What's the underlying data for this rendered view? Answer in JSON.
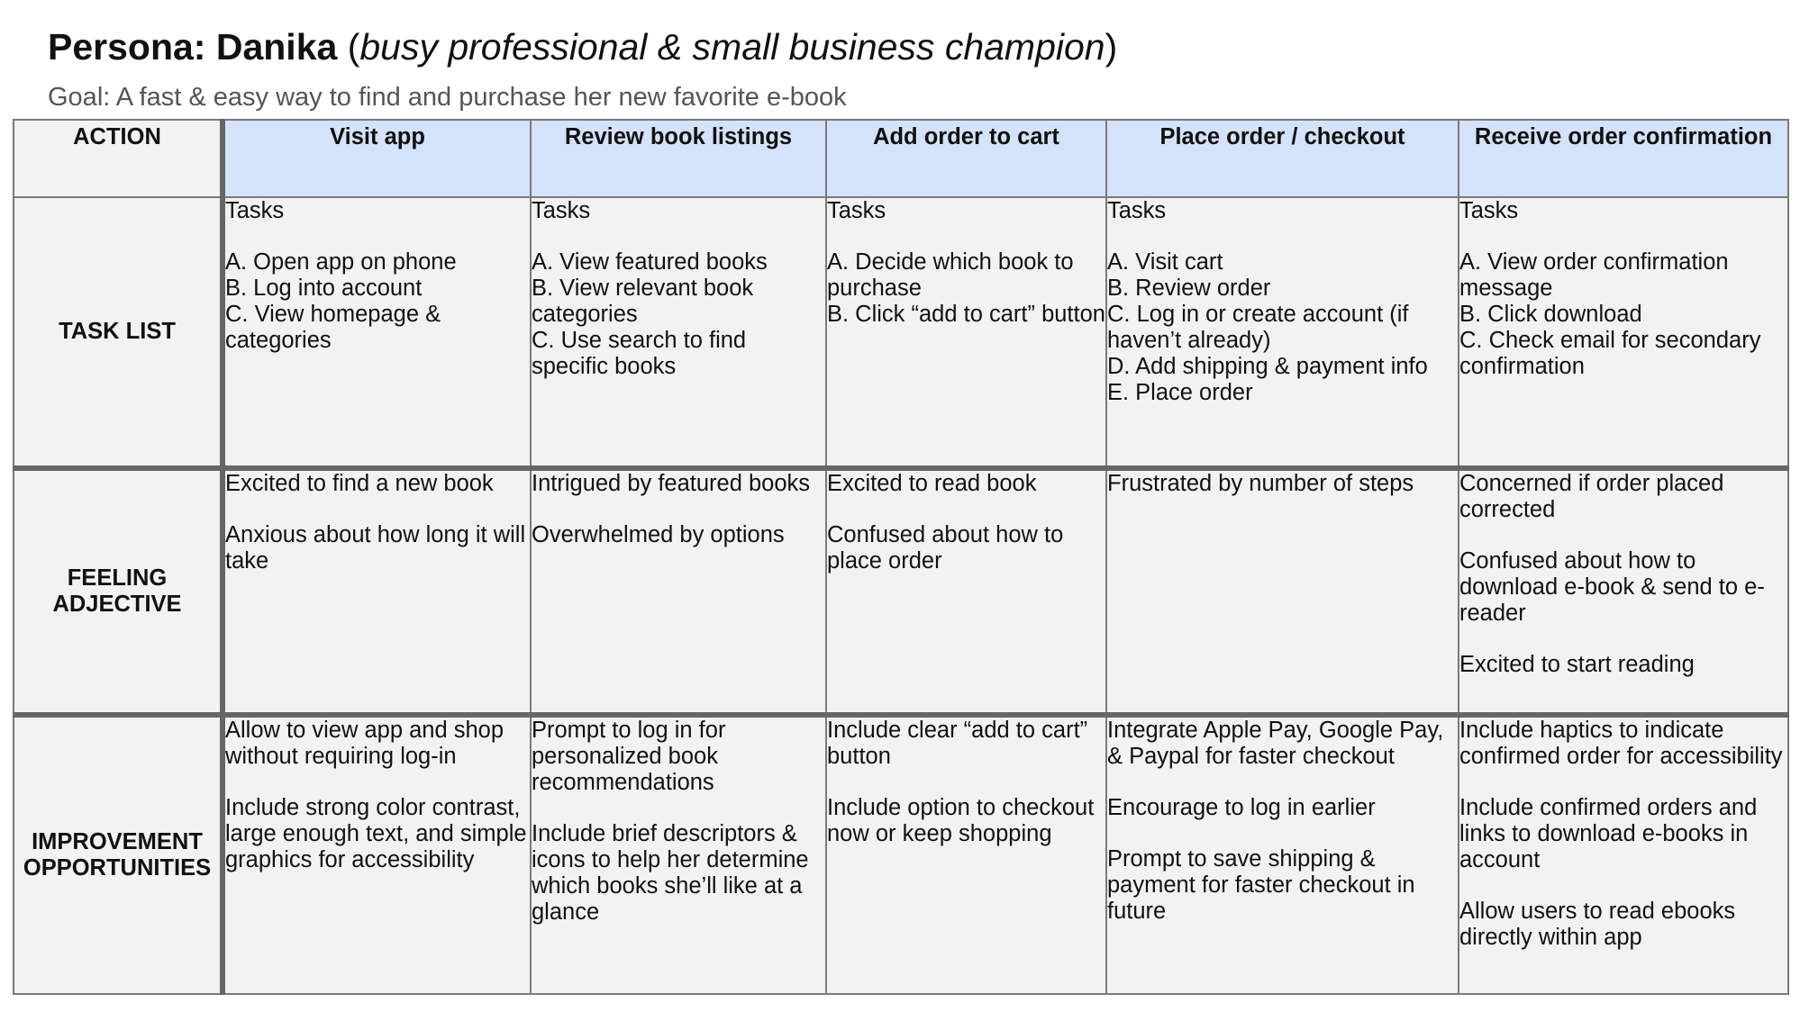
{
  "header": {
    "title_prefix": "Persona: Danika",
    "title_open": " (",
    "title_subtitle": "busy professional & small business champion",
    "title_close": ")",
    "goal": "Goal: A fast & easy way to find and purchase her new favorite e-book"
  },
  "table": {
    "corner_label": "ACTION",
    "columns": [
      "Visit app",
      "Review book listings",
      "Add order to cart",
      "Place order / checkout",
      "Receive order confirmation"
    ],
    "rows": [
      {
        "label": "TASK LIST",
        "cells": [
          {
            "heading": "Tasks",
            "items": [
              "A. Open app on phone",
              "B. Log into account",
              "C. View homepage & categories"
            ]
          },
          {
            "heading": "Tasks",
            "items": [
              "A. View featured books",
              "B. View relevant book categories",
              "C. Use search to find specific books"
            ]
          },
          {
            "heading": "Tasks",
            "items": [
              "A. Decide which book to purchase",
              "B. Click “add to cart” button"
            ]
          },
          {
            "heading": "Tasks",
            "items": [
              "A. Visit cart",
              "B. Review order",
              "C. Log in or create account (if haven’t already)",
              "D. Add shipping & payment info",
              "E. Place order"
            ]
          },
          {
            "heading": "Tasks",
            "items": [
              "A. View order confirmation message",
              "B. Click download",
              "C. Check email for secondary confirmation"
            ]
          }
        ]
      },
      {
        "label": "FEELING ADJECTIVE",
        "cells": [
          {
            "paragraphs": [
              "Excited to find a new book",
              "Anxious about how long it will take"
            ]
          },
          {
            "paragraphs": [
              "Intrigued by featured books",
              "Overwhelmed by options"
            ]
          },
          {
            "paragraphs": [
              "Excited to read book",
              "Confused about how to place order"
            ]
          },
          {
            "paragraphs": [
              "Frustrated by number of steps"
            ]
          },
          {
            "paragraphs": [
              "Concerned if order placed corrected",
              "Confused about how to download e-book & send to e-reader",
              "Excited to start reading"
            ]
          }
        ]
      },
      {
        "label": "IMPROVEMENT OPPORTUNITIES",
        "cells": [
          {
            "paragraphs": [
              "Allow to view app and shop without requiring log-in",
              "Include strong color contrast, large enough text, and simple graphics for accessibility"
            ]
          },
          {
            "paragraphs": [
              "Prompt to log in for personalized book recommendations",
              "Include brief descriptors & icons to help her determine which books she’ll like at a glance"
            ]
          },
          {
            "paragraphs": [
              "Include clear “add to cart” button",
              "Include option to checkout now or keep shopping"
            ]
          },
          {
            "paragraphs": [
              "Integrate Apple Pay, Google Pay, & Paypal for faster checkout",
              "Encourage to log in earlier",
              "Prompt to save shipping & payment for faster checkout in future"
            ]
          },
          {
            "paragraphs": [
              "Include haptics to indicate confirmed order for accessibility",
              "Include confirmed orders and links to download e-books in account",
              "Allow users to read ebooks directly within app"
            ]
          }
        ]
      }
    ]
  },
  "colors": {
    "header_fill": "#d5e2fb",
    "cell_fill": "#f2f2f2",
    "border": "#7a7a7a",
    "heavy_border": "#666666"
  }
}
